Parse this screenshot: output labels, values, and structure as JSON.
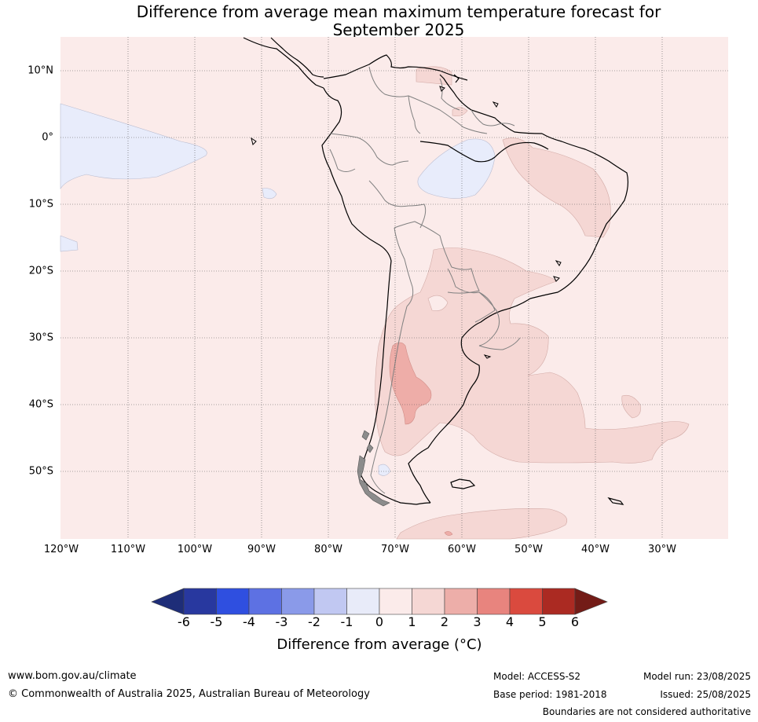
{
  "title": {
    "line1": "Difference from average mean maximum temperature forecast for",
    "line2": "September 2025"
  },
  "map": {
    "region": "South America",
    "lat_labels": [
      "10°N",
      "0°",
      "10°S",
      "20°S",
      "30°S",
      "40°S",
      "50°S"
    ],
    "lon_labels": [
      "120°W",
      "110°W",
      "100°W",
      "90°W",
      "80°W",
      "70°W",
      "60°W",
      "50°W",
      "40°W",
      "30°W"
    ],
    "categories": {
      "neutral_0_to_1": "#fbebea",
      "minus1_to_0": "#e8ecfb",
      "1_to_2": "#f5d7d4",
      "2_to_3": "#eeada8"
    }
  },
  "colorbar": {
    "ticks": [
      "-6",
      "-5",
      "-4",
      "-3",
      "-2",
      "-1",
      "0",
      "1",
      "2",
      "3",
      "4",
      "5",
      "6"
    ],
    "colors": [
      "#28389f",
      "#2f4fe0",
      "#5d71e3",
      "#8a9ae9",
      "#c1c8f2",
      "#e8ebf9",
      "#fbebea",
      "#f5d7d4",
      "#edaea9",
      "#e8847e",
      "#da4a3e",
      "#ab2a22"
    ],
    "low_arrow_color": "#1e2d78",
    "high_arrow_color": "#731c17",
    "label": "Difference from average (°C)"
  },
  "footer": {
    "website": "www.bom.gov.au/climate",
    "copyright": "© Commonwealth of Australia 2025, Australian Bureau of Meteorology",
    "model": "Model: ACCESS-S2",
    "base_period": "Base period: 1981-2018",
    "model_run": "Model run: 23/08/2025",
    "issued": "Issued: 25/08/2025",
    "disclaimer": "Boundaries are not considered authoritative"
  }
}
